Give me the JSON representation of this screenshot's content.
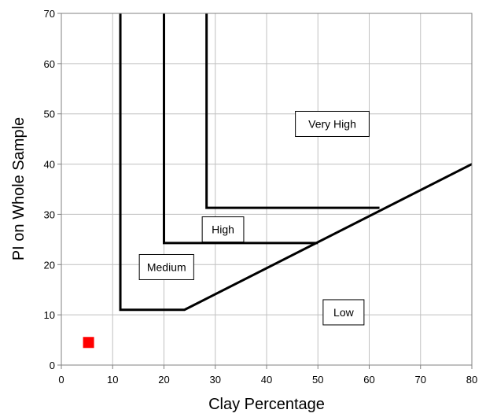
{
  "chart_data": {
    "type": "line",
    "title": "",
    "xlabel": "Clay Percentage",
    "ylabel": "PI on Whole Sample",
    "xlim": [
      0,
      80
    ],
    "ylim": [
      0,
      70
    ],
    "x_ticks": [
      0,
      10,
      20,
      30,
      40,
      50,
      60,
      70,
      80
    ],
    "y_ticks": [
      0,
      10,
      20,
      30,
      40,
      50,
      60,
      70
    ],
    "grid": true,
    "legend": "none",
    "boundaries": [
      {
        "points": [
          [
            11.5,
            70
          ],
          [
            11.5,
            11
          ],
          [
            24,
            11
          ],
          [
            80,
            40
          ]
        ]
      },
      {
        "points": [
          [
            20,
            70
          ],
          [
            20,
            24.3
          ],
          [
            50,
            24.3
          ]
        ]
      },
      {
        "points": [
          [
            28.3,
            70
          ],
          [
            28.3,
            31.3
          ],
          [
            62,
            31.3
          ]
        ]
      }
    ],
    "regions": [
      {
        "label": "Very High",
        "x": 52.8,
        "y": 48
      },
      {
        "label": "High",
        "x": 31.5,
        "y": 27
      },
      {
        "label": "Medium",
        "x": 20.5,
        "y": 19.5
      },
      {
        "label": "Low",
        "x": 55,
        "y": 10.5
      }
    ],
    "points": [
      {
        "x": 5.3,
        "y": 4.5,
        "color": "#ff0000"
      }
    ],
    "line_color": "#000000",
    "grid_color": "#c0c0c0"
  }
}
